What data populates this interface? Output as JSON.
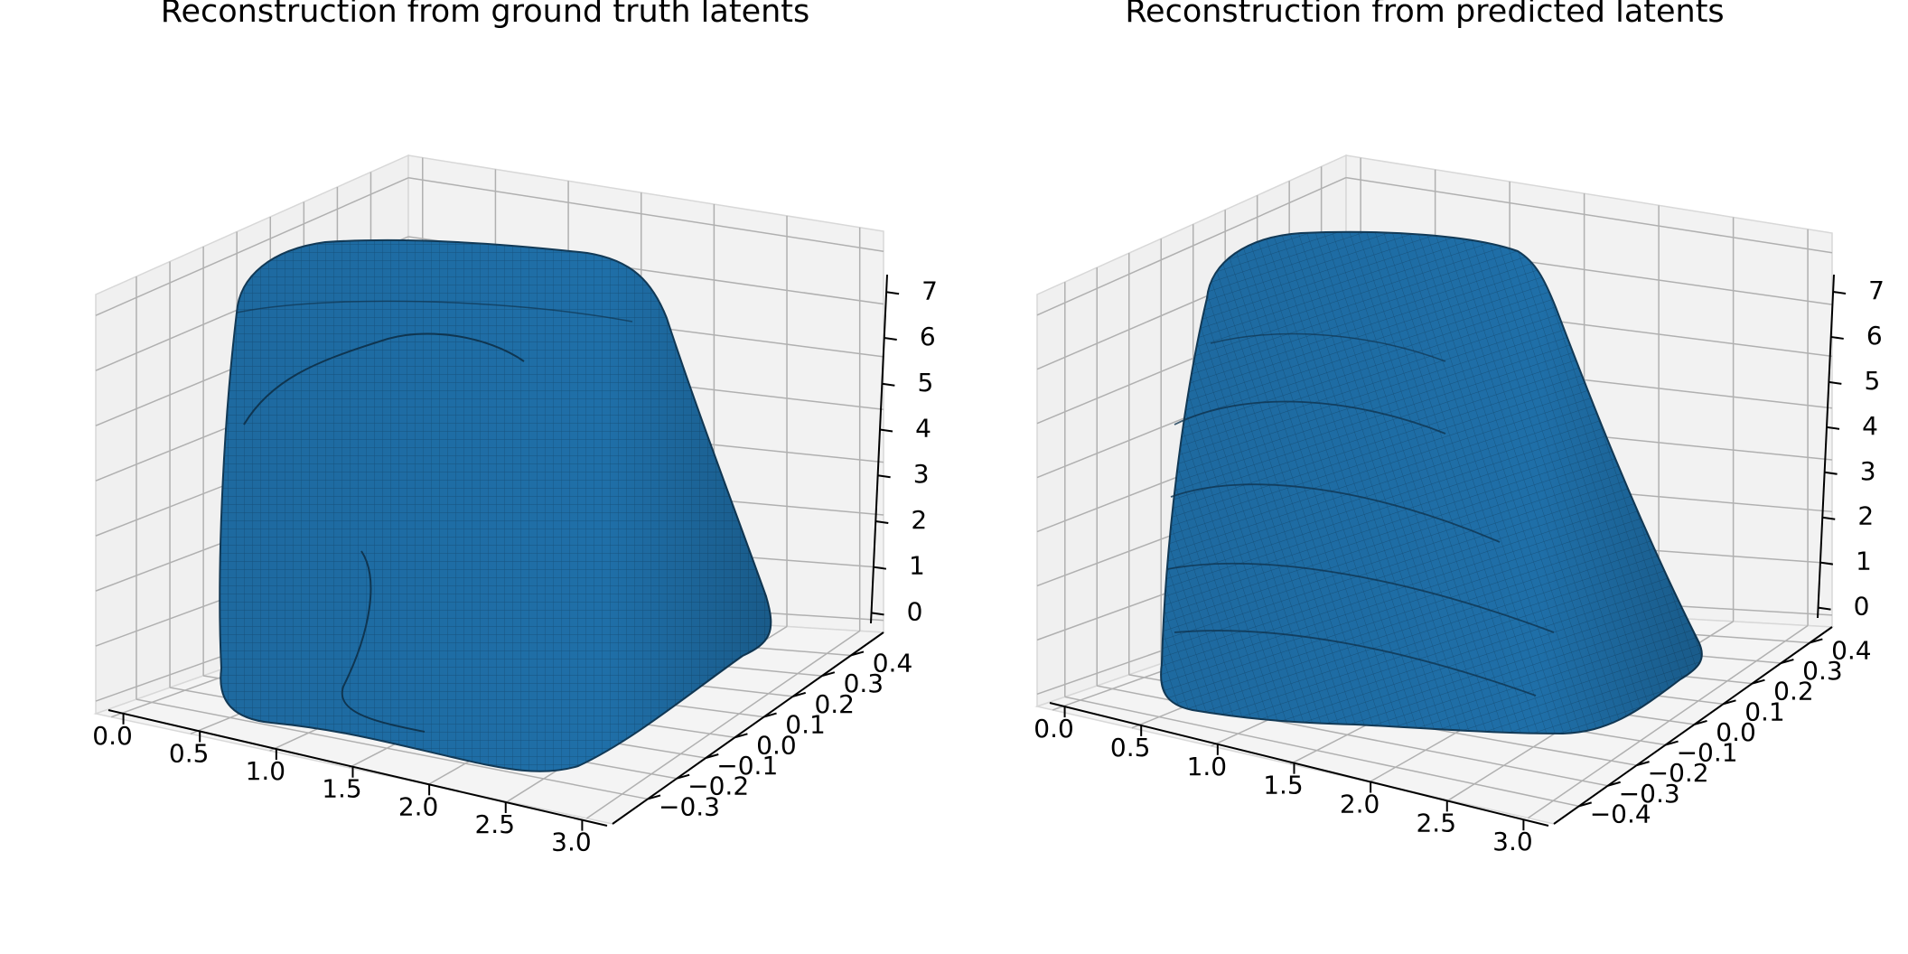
{
  "chart_data": [
    {
      "type": "surface3d",
      "title": "Reconstruction from ground truth latents",
      "xlabel": "",
      "ylabel": "",
      "zlabel": "",
      "x_ticks": [
        "0.0",
        "0.5",
        "1.0",
        "1.5",
        "2.0",
        "2.5",
        "3.0"
      ],
      "y_ticks": [
        "−0.3",
        "−0.2",
        "−0.1",
        "0.0",
        "0.1",
        "0.2",
        "0.3",
        "0.4"
      ],
      "z_ticks": [
        "0",
        "1",
        "2",
        "3",
        "4",
        "5",
        "6",
        "7"
      ],
      "xlim": [
        0.0,
        3.1
      ],
      "ylim": [
        -0.33,
        0.43
      ],
      "zlim": [
        0,
        7.6
      ],
      "grid": true,
      "surface_color": "#1f77b4"
    },
    {
      "type": "surface3d",
      "title": "Reconstruction from predicted latents",
      "xlabel": "",
      "ylabel": "",
      "zlabel": "",
      "x_ticks": [
        "0.0",
        "0.5",
        "1.0",
        "1.5",
        "2.0",
        "2.5",
        "3.0"
      ],
      "y_ticks": [
        "−0.4",
        "−0.3",
        "−0.2",
        "−0.1",
        "0.0",
        "0.1",
        "0.2",
        "0.3",
        "0.4"
      ],
      "z_ticks": [
        "0",
        "1",
        "2",
        "3",
        "4",
        "5",
        "6",
        "7"
      ],
      "xlim": [
        0.0,
        3.1
      ],
      "ylim": [
        -0.43,
        0.43
      ],
      "zlim": [
        0,
        7.6
      ],
      "grid": true,
      "surface_color": "#1f77b4"
    }
  ],
  "colors": {
    "surface": "#1f77b4",
    "surface_edge": "#10354f",
    "pane_back": "#f2f2f2",
    "pane_side": "#e9e9e9",
    "pane_floor": "#f2f2f2",
    "grid": "#b0b0b0"
  }
}
